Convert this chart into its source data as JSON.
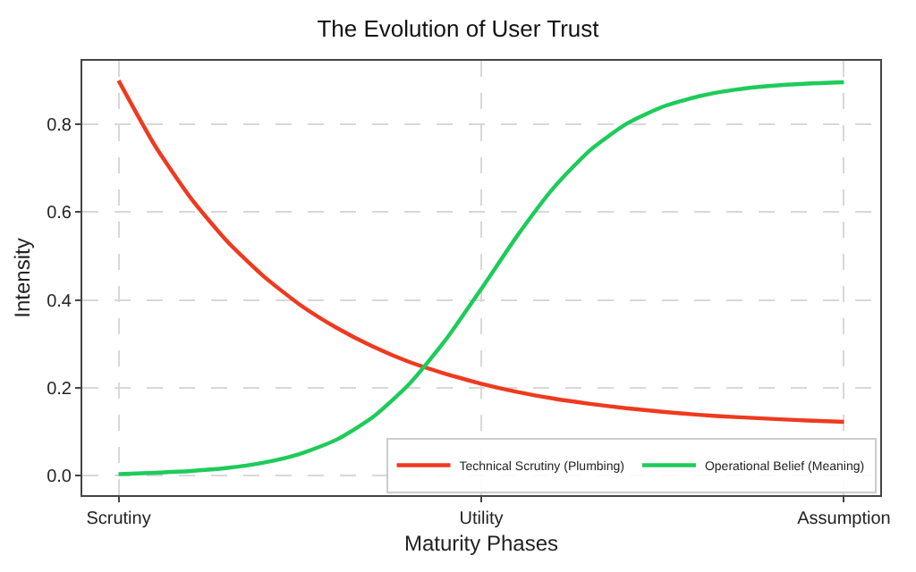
{
  "chart_data": {
    "type": "line",
    "title": "The Evolution of User Trust",
    "xlabel": "Maturity Phases",
    "ylabel": "Intensity",
    "categories": [
      "Scrutiny",
      null,
      null,
      null,
      null,
      null,
      null,
      null,
      null,
      null,
      "Utility",
      null,
      null,
      null,
      null,
      null,
      null,
      null,
      null,
      null,
      "Assumption"
    ],
    "series": [
      {
        "name": "Technical Scrutiny (Plumbing)",
        "color": "#ee3a1f",
        "values": [
          0.9,
          0.752,
          0.631,
          0.533,
          0.454,
          0.389,
          0.337,
          0.294,
          0.259,
          0.232,
          0.209,
          0.19,
          0.175,
          0.163,
          0.153,
          0.145,
          0.138,
          0.133,
          0.129,
          0.125,
          0.122
        ]
      },
      {
        "name": "Operational Belief (Meaning)",
        "color": "#1ecb5a",
        "values": [
          0.003,
          0.006,
          0.01,
          0.017,
          0.029,
          0.049,
          0.081,
          0.132,
          0.207,
          0.307,
          0.425,
          0.547,
          0.656,
          0.741,
          0.801,
          0.84,
          0.864,
          0.879,
          0.888,
          0.893,
          0.896
        ]
      }
    ],
    "ylim": [
      -0.045,
      0.945
    ],
    "yticks": [
      {
        "value": 0,
        "label": "0.0"
      },
      0.2,
      0.4,
      0.6,
      0.8
    ],
    "grid": true,
    "legend": "bottom right",
    "marker": "none",
    "line_style": "solid"
  }
}
